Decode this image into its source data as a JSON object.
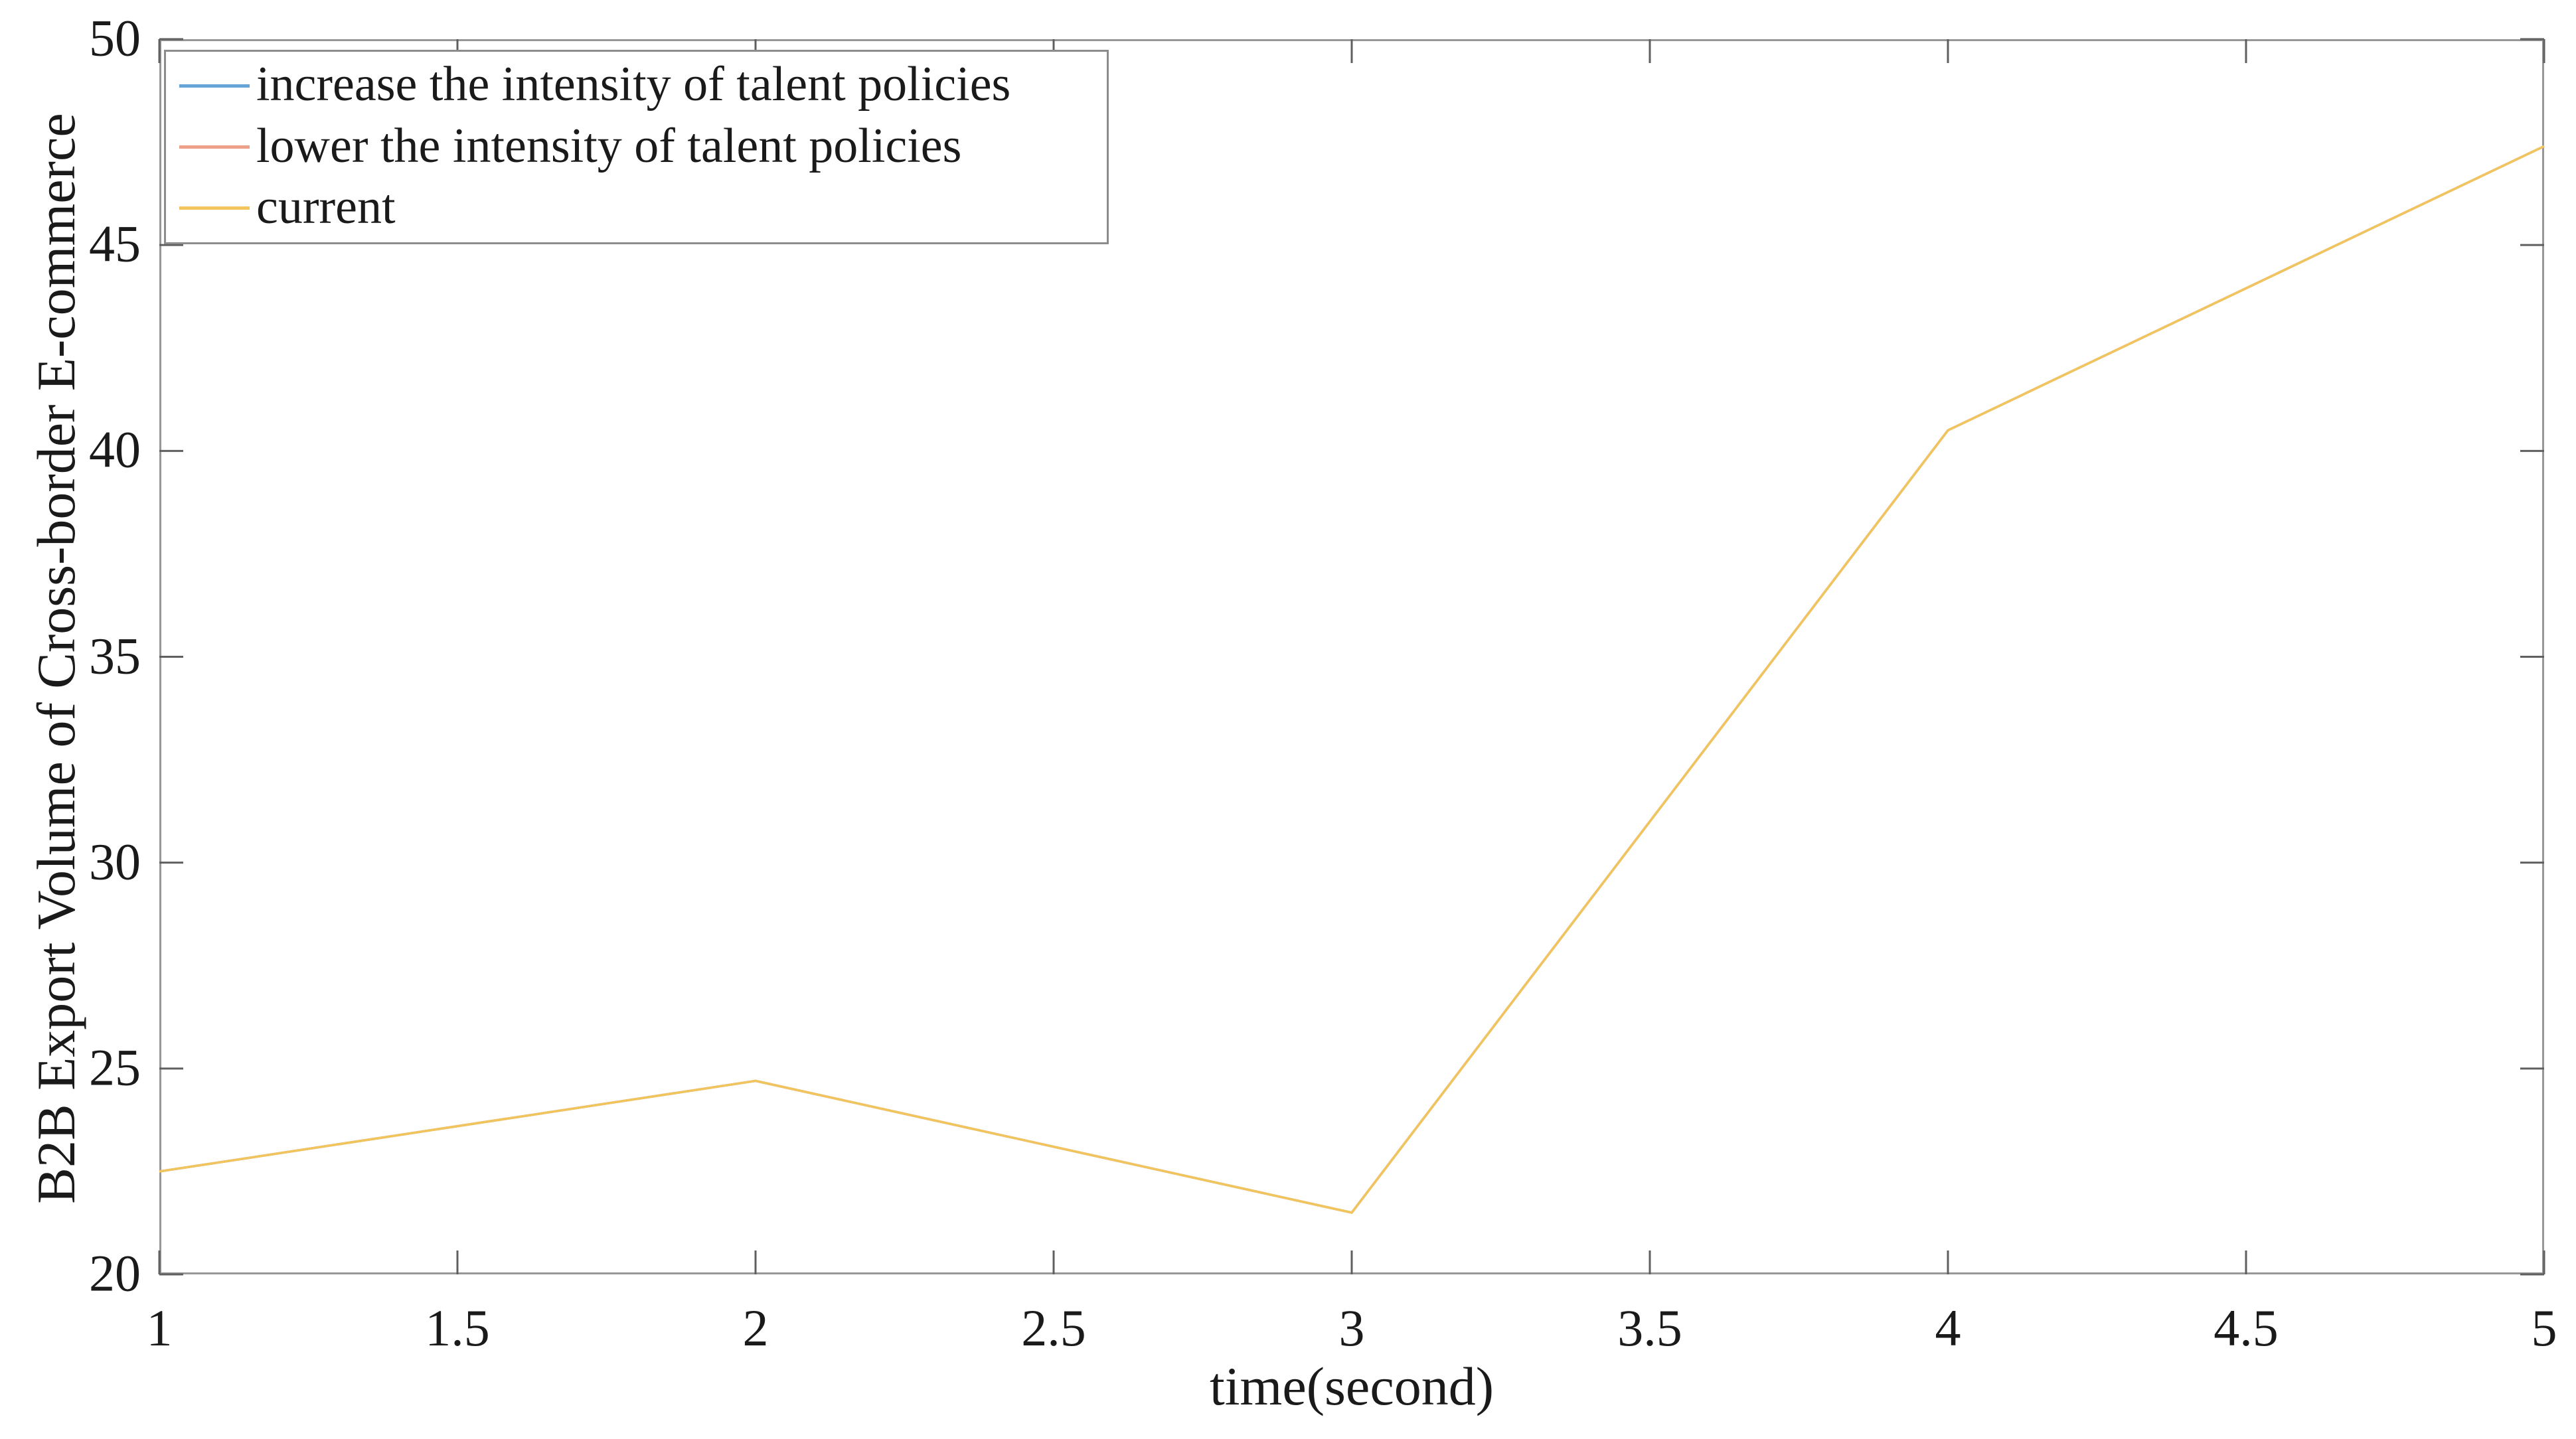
{
  "page": {
    "background": "#ffffff"
  },
  "axes": {
    "xlabel": "time(second)",
    "ylabel": "B2B Export Volume of Cross-border E-commerce",
    "spine_color": "#979797",
    "tick_color": "#5f5f5f",
    "tick_label_color": "#1a1a1a",
    "tick_length": 36
  },
  "legend": {
    "position": "top-left",
    "border_color": "#8c8c8c",
    "items": [
      {
        "label": "increase the intensity of talent policies",
        "color": "#64a4d6"
      },
      {
        "label": "lower the intensity of talent policies",
        "color": "#eda189"
      },
      {
        "label": "current",
        "color": "#f2c45c"
      }
    ]
  },
  "chart_data": {
    "type": "line",
    "title": "",
    "xlabel": "time(second)",
    "ylabel": "B2B Export Volume of Cross-border E-commerce",
    "x": [
      1,
      2,
      3,
      4,
      5
    ],
    "series": [
      {
        "name": "increase the intensity of talent policies",
        "color": "#64a4d6",
        "values": [
          22.5,
          24.7,
          21.5,
          40.5,
          47.4
        ]
      },
      {
        "name": "lower the intensity of talent policies",
        "color": "#eda189",
        "values": [
          22.5,
          24.7,
          21.5,
          40.5,
          47.4
        ]
      },
      {
        "name": "current",
        "color": "#f2c45c",
        "values": [
          22.5,
          24.7,
          21.5,
          40.5,
          47.4
        ]
      }
    ],
    "xlim": [
      1,
      5
    ],
    "ylim": [
      20,
      50
    ],
    "xticks": [
      1,
      1.5,
      2,
      2.5,
      3,
      3.5,
      4,
      4.5,
      5
    ],
    "yticks": [
      20,
      25,
      30,
      35,
      40,
      45,
      50
    ],
    "grid": false,
    "legend_position": "top-left",
    "note": "all three series coincide; only the 'current' line drawn on top is visible"
  }
}
